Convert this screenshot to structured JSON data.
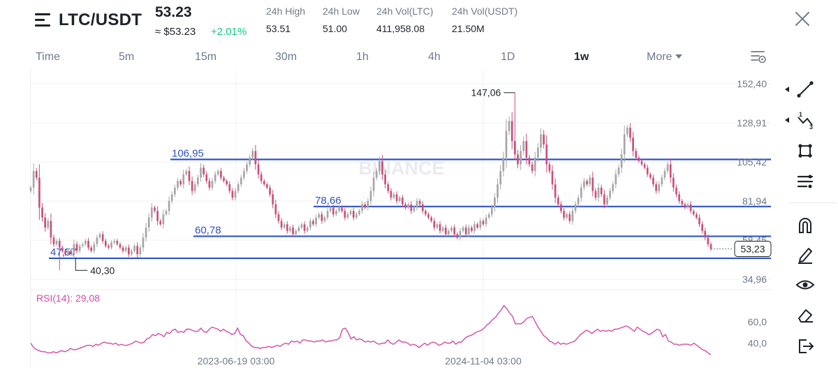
{
  "header": {
    "pair": "LTC/USDT",
    "price": "53.23",
    "fiat_price": "≈ $53.23",
    "change": "+2.01%",
    "stats": [
      {
        "label": "24h High",
        "value": "53.51"
      },
      {
        "label": "24h Low",
        "value": "51.00"
      },
      {
        "label": "24h Vol(LTC)",
        "value": "411,958.08"
      },
      {
        "label": "24h Vol(USDT)",
        "value": "21.50M"
      }
    ]
  },
  "intervals": [
    "Time",
    "5m",
    "15m",
    "30m",
    "1h",
    "4h",
    "1D",
    "1w",
    "More"
  ],
  "active_interval": "1w",
  "toolbar": {
    "icons": [
      "trend-line-icon",
      "fibonacci-icon",
      "shape-icon",
      "indicator-list-icon",
      "magnet-icon",
      "pencil-icon",
      "eye-icon",
      "eraser-icon",
      "exit-icon"
    ]
  },
  "colors": {
    "up": "#a6a6a6",
    "down": "#c94f7c",
    "level_line": "#2f53c9",
    "rsi": "#d24ba7",
    "change": "#0ecb81"
  },
  "chart_data": [
    {
      "type": "candlestick",
      "title": "",
      "watermark": "BINANCE",
      "y_axis_ticks": [
        "152,40",
        "128,91",
        "105,42",
        "81,94",
        "58,45",
        "34,96"
      ],
      "x_axis_ticks": [
        "2023-06-19 03:00",
        "2024-11-04 03:00"
      ],
      "ylim": [
        34.96,
        152.4
      ],
      "grid": true,
      "current_price_label": "53,23",
      "current_price": 53.23,
      "high_marker": {
        "label": "147,06",
        "value": 147.06
      },
      "low_marker": {
        "label": "40,30",
        "value": 40.3
      },
      "horizontal_levels": [
        {
          "label": "106,95",
          "value": 106.95
        },
        {
          "label": "78,66",
          "value": 78.66
        },
        {
          "label": "60,78",
          "value": 60.78
        },
        {
          "label": "47,57",
          "value": 47.57
        }
      ],
      "close_series": [
        90,
        100,
        96,
        78,
        72,
        66,
        70,
        60,
        56,
        58,
        54,
        52,
        50,
        52,
        50,
        56,
        52,
        55,
        56,
        58,
        54,
        52,
        56,
        60,
        62,
        58,
        55,
        54,
        57,
        58,
        56,
        54,
        52,
        54,
        50,
        52,
        55,
        50,
        54,
        60,
        66,
        72,
        78,
        76,
        70,
        68,
        74,
        76,
        82,
        86,
        90,
        94,
        92,
        98,
        100,
        94,
        88,
        92,
        96,
        102,
        98,
        94,
        90,
        94,
        98,
        100,
        96,
        94,
        92,
        88,
        84,
        88,
        92,
        96,
        100,
        104,
        108,
        112,
        104,
        98,
        94,
        92,
        90,
        86,
        80,
        74,
        70,
        66,
        68,
        64,
        66,
        62,
        64,
        66,
        68,
        64,
        66,
        70,
        68,
        72,
        74,
        70,
        72,
        76,
        78,
        74,
        76,
        78,
        76,
        72,
        74,
        76,
        72,
        74,
        76,
        80,
        78,
        82,
        88,
        96,
        100,
        106,
        98,
        92,
        88,
        84,
        86,
        82,
        84,
        80,
        78,
        80,
        76,
        78,
        82,
        80,
        76,
        74,
        72,
        70,
        66,
        68,
        64,
        66,
        62,
        64,
        66,
        62,
        60,
        64,
        66,
        62,
        66,
        64,
        68,
        66,
        70,
        68,
        72,
        74,
        78,
        84,
        92,
        100,
        108,
        124,
        130,
        118,
        110,
        104,
        112,
        118,
        108,
        104,
        100,
        108,
        114,
        122,
        116,
        104,
        100,
        92,
        84,
        80,
        76,
        72,
        74,
        70,
        76,
        80,
        84,
        90,
        94,
        92,
        96,
        88,
        84,
        90,
        86,
        80,
        84,
        88,
        92,
        98,
        102,
        110,
        122,
        126,
        120,
        112,
        108,
        106,
        104,
        102,
        98,
        96,
        92,
        88,
        92,
        96,
        100,
        104,
        96,
        90,
        86,
        82,
        80,
        78,
        80,
        76,
        74,
        72,
        68,
        64,
        60,
        56,
        53.23
      ],
      "x_label": "",
      "y_label": ""
    },
    {
      "type": "line",
      "title": "RSI(14): 29,08",
      "series": [
        {
          "name": "RSI(14)",
          "values": [
            40,
            36,
            34,
            33,
            32,
            32,
            31,
            31,
            32,
            31,
            32,
            33,
            32,
            33,
            35,
            34,
            34,
            35,
            36,
            37,
            38,
            38,
            37,
            39,
            38,
            40,
            41,
            40,
            40,
            39,
            40,
            38,
            39,
            38,
            38,
            39,
            40,
            42,
            41,
            40,
            41,
            44,
            45,
            48,
            47,
            49,
            48,
            46,
            50,
            49,
            52,
            53,
            50,
            51,
            50,
            53,
            53,
            52,
            51,
            51,
            54,
            51,
            50,
            53,
            55,
            54,
            53,
            51,
            53,
            51,
            50,
            48,
            49,
            54,
            48,
            47,
            42,
            40,
            37,
            36,
            36,
            35,
            36,
            36,
            37,
            36,
            37,
            38,
            37,
            39,
            40,
            39,
            42,
            41,
            42,
            40,
            43,
            43,
            42,
            42,
            41,
            42,
            42,
            43,
            41,
            42,
            42,
            43,
            43,
            45,
            53,
            54,
            50,
            44,
            46,
            43,
            44,
            43,
            41,
            42,
            41,
            42,
            40,
            39,
            40,
            40,
            43,
            40,
            39,
            41,
            43,
            41,
            41,
            40,
            38,
            39,
            38,
            36,
            38,
            40,
            38,
            40,
            41,
            40,
            38,
            39,
            41,
            40,
            40,
            42,
            39,
            41,
            41,
            44,
            46,
            47,
            48,
            50,
            51,
            52,
            54,
            57,
            59,
            62,
            64,
            68,
            71,
            75,
            72,
            68,
            65,
            58,
            58,
            58,
            60,
            63,
            64,
            65,
            60,
            55,
            51,
            47,
            45,
            42,
            41,
            39,
            41,
            39,
            40,
            39,
            40,
            41,
            42,
            45,
            48,
            50,
            52,
            51,
            49,
            51,
            53,
            51,
            52,
            51,
            52,
            51,
            53,
            53,
            54,
            55,
            56,
            55,
            53,
            51,
            55,
            53,
            51,
            50,
            48,
            49,
            51,
            53,
            52,
            46,
            48,
            42,
            41,
            39,
            39,
            38,
            39,
            39,
            39,
            38,
            40,
            38,
            36,
            34,
            33,
            31,
            29.08
          ]
        }
      ],
      "y_axis_ticks": [
        "60,0",
        "40,0"
      ],
      "ylim": [
        28,
        80
      ]
    }
  ]
}
